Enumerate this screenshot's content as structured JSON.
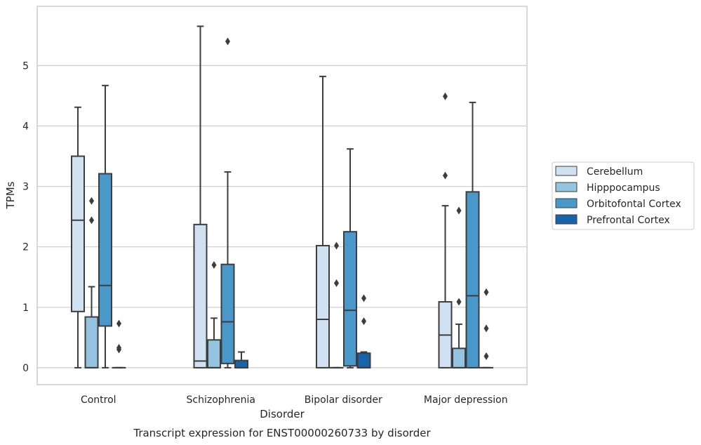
{
  "chart_data": {
    "type": "box",
    "caption": "Transcript expression for ENST00000260733 by disorder",
    "xlabel": "Disorder",
    "ylabel": "TPMs",
    "ylim": [
      -0.28,
      5.98
    ],
    "yticks": [
      0,
      1,
      2,
      3,
      4,
      5
    ],
    "grid": "horizontal",
    "legend_position": "right",
    "categories": [
      "Control",
      "Schizophrenia",
      "Bipolar disorder",
      "Major depression"
    ],
    "series": [
      {
        "name": "Cerebellum",
        "color": "#d0e1f2",
        "boxes": [
          {
            "whisker_low": 0,
            "q1": 0.93,
            "median": 2.44,
            "q3": 3.5,
            "whisker_high": 4.31,
            "outliers": []
          },
          {
            "whisker_low": 0,
            "q1": 0,
            "median": 0.11,
            "q3": 2.37,
            "whisker_high": 5.65,
            "outliers": []
          },
          {
            "whisker_low": 0,
            "q1": 0,
            "median": 0.8,
            "q3": 2.02,
            "whisker_high": 4.82,
            "outliers": []
          },
          {
            "whisker_low": 0,
            "q1": 0,
            "median": 0.54,
            "q3": 1.09,
            "whisker_high": 2.68,
            "outliers": [
              3.18,
              4.49
            ]
          }
        ]
      },
      {
        "name": "Hipppocampus",
        "color": "#94c4df",
        "boxes": [
          {
            "whisker_low": 0,
            "q1": 0,
            "median": 0,
            "q3": 0.84,
            "whisker_high": 1.34,
            "outliers": [
              2.44,
              2.76
            ]
          },
          {
            "whisker_low": 0,
            "q1": 0,
            "median": 0,
            "q3": 0.46,
            "whisker_high": 0.82,
            "outliers": [
              1.7
            ]
          },
          {
            "whisker_low": 0,
            "q1": 0,
            "median": 0,
            "q3": 0,
            "whisker_high": 0,
            "outliers": [
              1.4,
              2.02
            ]
          },
          {
            "whisker_low": 0,
            "q1": 0,
            "median": 0,
            "q3": 0.32,
            "whisker_high": 0.72,
            "outliers": [
              1.09,
              2.6
            ]
          }
        ]
      },
      {
        "name": "Orbitofontal Cortex",
        "color": "#4a98c9",
        "boxes": [
          {
            "whisker_low": 0,
            "q1": 0.69,
            "median": 1.36,
            "q3": 3.21,
            "whisker_high": 4.67,
            "outliers": []
          },
          {
            "whisker_low": 0,
            "q1": 0.07,
            "median": 0.76,
            "q3": 1.71,
            "whisker_high": 3.24,
            "outliers": [
              5.4
            ]
          },
          {
            "whisker_low": 0,
            "q1": 0.03,
            "median": 0.95,
            "q3": 2.25,
            "whisker_high": 3.62,
            "outliers": []
          },
          {
            "whisker_low": 0,
            "q1": 0,
            "median": 1.19,
            "q3": 2.91,
            "whisker_high": 4.39,
            "outliers": []
          }
        ]
      },
      {
        "name": "Prefrontal Cortex",
        "color": "#1764ab",
        "boxes": [
          {
            "whisker_low": 0,
            "q1": 0,
            "median": 0,
            "q3": 0,
            "whisker_high": 0,
            "outliers": [
              0.3,
              0.33,
              0.73
            ]
          },
          {
            "whisker_low": 0,
            "q1": 0,
            "median": 0,
            "q3": 0.12,
            "whisker_high": 0.26,
            "outliers": []
          },
          {
            "whisker_low": 0,
            "q1": 0,
            "median": 0,
            "q3": 0.24,
            "whisker_high": 0.26,
            "outliers": [
              0.77,
              1.15
            ]
          },
          {
            "whisker_low": 0,
            "q1": 0,
            "median": 0,
            "q3": 0,
            "whisker_high": 0,
            "outliers": [
              0.19,
              0.65,
              1.25
            ]
          }
        ]
      }
    ]
  }
}
